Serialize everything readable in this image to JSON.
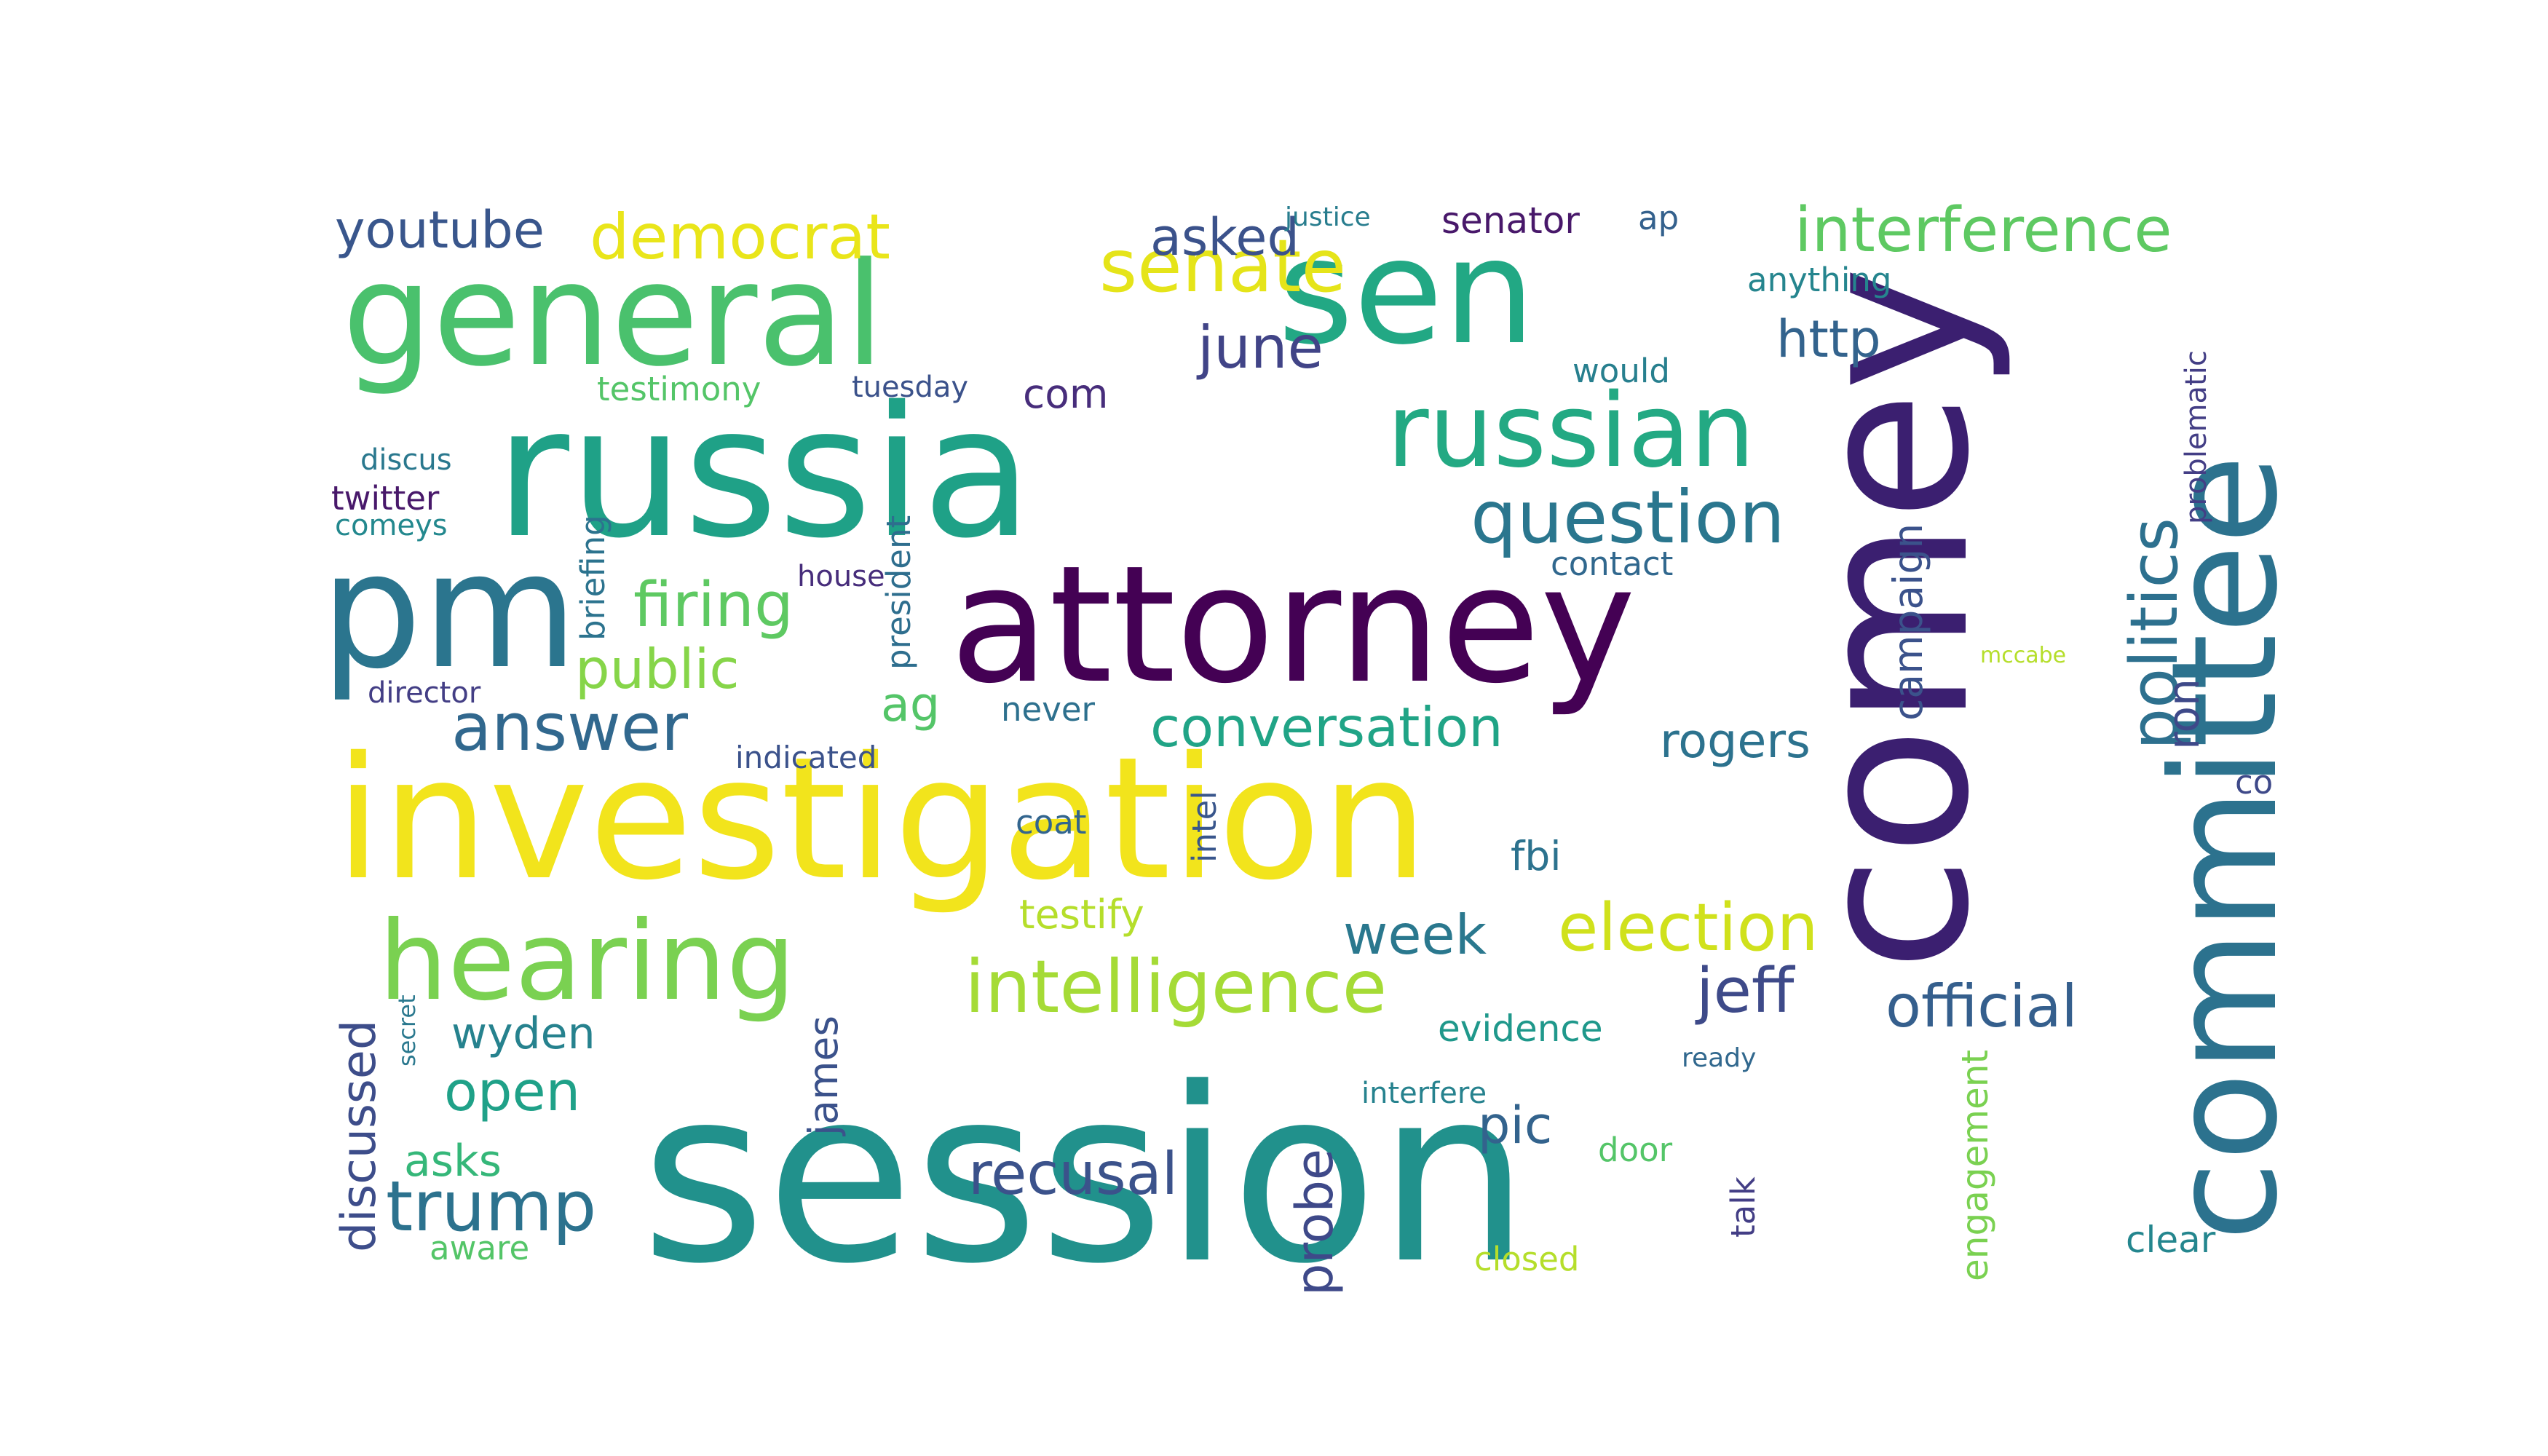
{
  "word_cloud": {
    "words": [
      {
        "text": "session",
        "color": "#21918c"
      },
      {
        "text": "investigation",
        "color": "#f2e41c"
      },
      {
        "text": "russia",
        "color": "#1fa187"
      },
      {
        "text": "attorney",
        "color": "#440154"
      },
      {
        "text": "comey",
        "color": "#3b1f70"
      },
      {
        "text": "committee",
        "color": "#2c728e"
      },
      {
        "text": "general",
        "color": "#4ac16d"
      },
      {
        "text": "sen",
        "color": "#22a884"
      },
      {
        "text": "pm",
        "color": "#2b758e"
      },
      {
        "text": "hearing",
        "color": "#7ad151"
      },
      {
        "text": "russian",
        "color": "#23a983"
      },
      {
        "text": "intelligence",
        "color": "#a5db36"
      },
      {
        "text": "question",
        "color": "#2a768e"
      },
      {
        "text": "election",
        "color": "#d0e11c"
      },
      {
        "text": "conversation",
        "color": "#20a486"
      },
      {
        "text": "interference",
        "color": "#5ec962"
      },
      {
        "text": "senate",
        "color": "#e5e419"
      },
      {
        "text": "democrat",
        "color": "#e9e51a"
      },
      {
        "text": "politics",
        "color": "#2d708e"
      },
      {
        "text": "trump",
        "color": "#2c728e"
      },
      {
        "text": "answer",
        "color": "#31688e"
      },
      {
        "text": "recusal",
        "color": "#3b528b"
      },
      {
        "text": "official",
        "color": "#355f8d"
      },
      {
        "text": "jeff",
        "color": "#3e4a89"
      },
      {
        "text": "firing",
        "color": "#5ec962"
      },
      {
        "text": "public",
        "color": "#86d549"
      },
      {
        "text": "open",
        "color": "#1fa188"
      },
      {
        "text": "week",
        "color": "#2a788e"
      },
      {
        "text": "june",
        "color": "#414487"
      },
      {
        "text": "asked",
        "color": "#3b528b"
      },
      {
        "text": "youtube",
        "color": "#39568c"
      },
      {
        "text": "probe",
        "color": "#3e4989"
      },
      {
        "text": "discussed",
        "color": "#3d4d8a"
      },
      {
        "text": "pic",
        "color": "#33638d"
      },
      {
        "text": "campaign",
        "color": "#3b528b"
      },
      {
        "text": "engagement",
        "color": "#7ad151"
      },
      {
        "text": "wyden",
        "color": "#26828e"
      },
      {
        "text": "http",
        "color": "#33638d"
      },
      {
        "text": "testify",
        "color": "#b5de2b"
      },
      {
        "text": "asks",
        "color": "#35b779"
      },
      {
        "text": "evidence",
        "color": "#1f988b"
      },
      {
        "text": "james",
        "color": "#3b528b"
      },
      {
        "text": "rogers",
        "color": "#2c728e"
      },
      {
        "text": "ron",
        "color": "#3e4989"
      },
      {
        "text": "clear",
        "color": "#24868e"
      },
      {
        "text": "fbi",
        "color": "#2c728e"
      },
      {
        "text": "com",
        "color": "#472d7b"
      },
      {
        "text": "senator",
        "color": "#48186a"
      },
      {
        "text": "testimony",
        "color": "#54c568"
      },
      {
        "text": "ag",
        "color": "#54c568"
      },
      {
        "text": "president",
        "color": "#2e6e8e"
      },
      {
        "text": "briefing",
        "color": "#2c738e"
      },
      {
        "text": "would",
        "color": "#277f8e"
      },
      {
        "text": "anything",
        "color": "#25858e"
      },
      {
        "text": "contact",
        "color": "#31688e"
      },
      {
        "text": "director",
        "color": "#433e85"
      },
      {
        "text": "tuesday",
        "color": "#3b528b"
      },
      {
        "text": "twitter",
        "color": "#48186a"
      },
      {
        "text": "door",
        "color": "#54c568"
      },
      {
        "text": "closed",
        "color": "#b5de2b"
      },
      {
        "text": "comeys",
        "color": "#23888e"
      },
      {
        "text": "discus",
        "color": "#2a788e"
      },
      {
        "text": "coat",
        "color": "#32658e"
      },
      {
        "text": "talk",
        "color": "#433e85"
      },
      {
        "text": "never",
        "color": "#2d708e"
      },
      {
        "text": "indicated",
        "color": "#3b528b"
      },
      {
        "text": "aware",
        "color": "#54c568"
      },
      {
        "text": "house",
        "color": "#472d7b"
      },
      {
        "text": "problematic",
        "color": "#433e85"
      },
      {
        "text": "co",
        "color": "#3e4989"
      },
      {
        "text": "intel",
        "color": "#39568c"
      },
      {
        "text": "interfere",
        "color": "#26828e"
      },
      {
        "text": "ap",
        "color": "#34618d"
      },
      {
        "text": "justice",
        "color": "#287d8e"
      },
      {
        "text": "ready",
        "color": "#31688e"
      },
      {
        "text": "mccabe",
        "color": "#b5de2b"
      },
      {
        "text": "secret",
        "color": "#2a788e"
      }
    ]
  }
}
